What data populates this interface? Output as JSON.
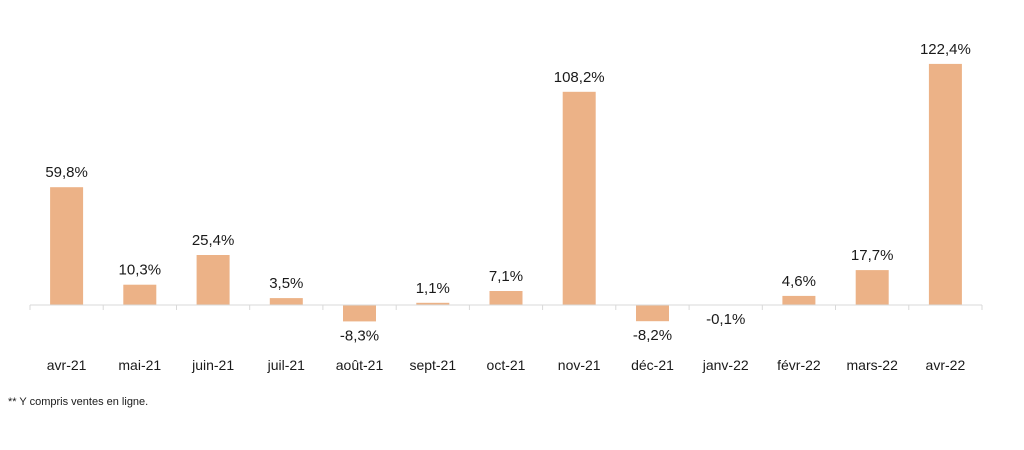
{
  "chart_data": {
    "type": "bar",
    "categories": [
      "avr-21",
      "mai-21",
      "juin-21",
      "juil-21",
      "août-21",
      "sept-21",
      "oct-21",
      "nov-21",
      "déc-21",
      "janv-22",
      "févr-22",
      "mars-22",
      "avr-22"
    ],
    "values": [
      59.8,
      10.3,
      25.4,
      3.5,
      -8.3,
      1.1,
      7.1,
      108.2,
      -8.2,
      -0.1,
      4.6,
      17.7,
      122.4
    ],
    "data_labels": [
      "59,8%",
      "10,3%",
      "25,4%",
      "3,5%",
      "-8,3%",
      "1,1%",
      "7,1%",
      "108,2%",
      "-8,2%",
      "-0,1%",
      "4,6%",
      "17,7%",
      "122,4%"
    ],
    "title": "",
    "xlabel": "",
    "ylabel": "",
    "ylim": [
      -10,
      130
    ],
    "grid": false,
    "colors": {
      "bar": "#ECB287",
      "axis": "#D9D9D9"
    }
  },
  "footnote": "** Y compris ventes en ligne."
}
